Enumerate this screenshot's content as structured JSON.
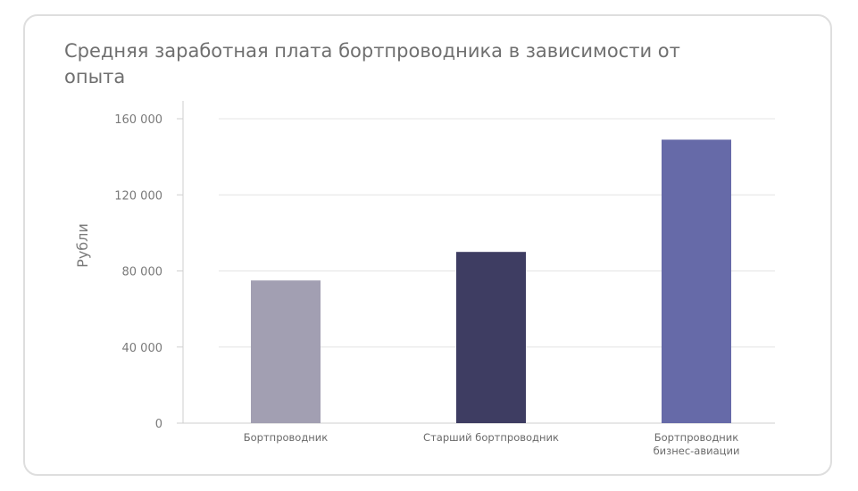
{
  "chart_data": {
    "type": "bar",
    "title": "Средняя заработная плата бортпроводника в зависимости от опыта",
    "ylabel": "Рубли",
    "xlabel": "",
    "ylim": [
      0,
      160000
    ],
    "yticks": [
      0,
      40000,
      80000,
      120000,
      160000
    ],
    "ytick_labels": [
      "0",
      "40 000",
      "80 000",
      "120 000",
      "160 000"
    ],
    "grid": true,
    "categories": [
      [
        "Бортпроводник"
      ],
      [
        "Старший бортпроводник"
      ],
      [
        "Бортпроводник",
        "бизнес-авиации"
      ]
    ],
    "values": [
      75000,
      90000,
      149000
    ],
    "colors": [
      "#a29fb2",
      "#3e3d62",
      "#666aa8"
    ]
  }
}
